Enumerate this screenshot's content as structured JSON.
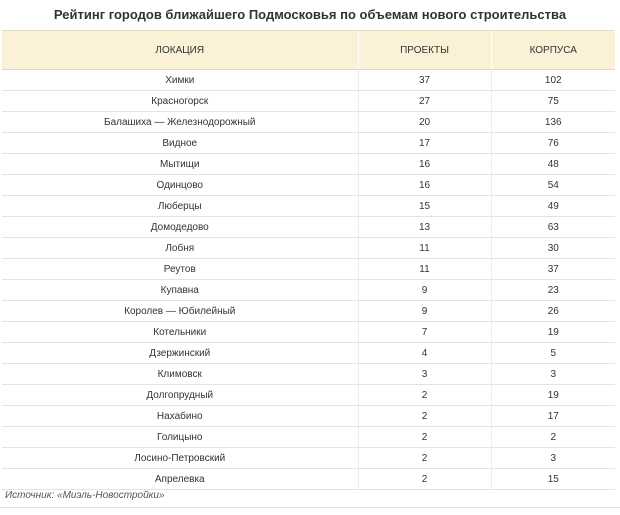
{
  "title": "Рейтинг городов ближайшего Подмосковья по объемам нового строительства",
  "table": {
    "headers": [
      "ЛОКАЦИЯ",
      "ПРОЕКТЫ",
      "КОРПУСА"
    ],
    "rows": [
      [
        "Химки",
        "37",
        "102"
      ],
      [
        "Красногорск",
        "27",
        "75"
      ],
      [
        "Балашиха — Железнодорожный",
        "20",
        "136"
      ],
      [
        "Видное",
        "17",
        "76"
      ],
      [
        "Мытищи",
        "16",
        "48"
      ],
      [
        "Одинцово",
        "16",
        "54"
      ],
      [
        "Люберцы",
        "15",
        "49"
      ],
      [
        "Домодедово",
        "13",
        "63"
      ],
      [
        "Лобня",
        "11",
        "30"
      ],
      [
        "Реутов",
        "11",
        "37"
      ],
      [
        "Купавна",
        "9",
        "23"
      ],
      [
        "Королев — Юбилейный",
        "9",
        "26"
      ],
      [
        "Котельники",
        "7",
        "19"
      ],
      [
        "Дзержинский",
        "4",
        "5"
      ],
      [
        "Климовск",
        "3",
        "3"
      ],
      [
        "Долгопрудный",
        "2",
        "19"
      ],
      [
        "Нахабино",
        "2",
        "17"
      ],
      [
        "Голицыно",
        "2",
        "2"
      ],
      [
        "Лосино-Петровский",
        "2",
        "3"
      ],
      [
        "Апрелевка",
        "2",
        "15"
      ]
    ]
  },
  "source": "Источник: «Миэль-Новостройки»",
  "colors": {
    "header_background": "#fbf1d6",
    "row_divider": "#e3e3e3"
  }
}
